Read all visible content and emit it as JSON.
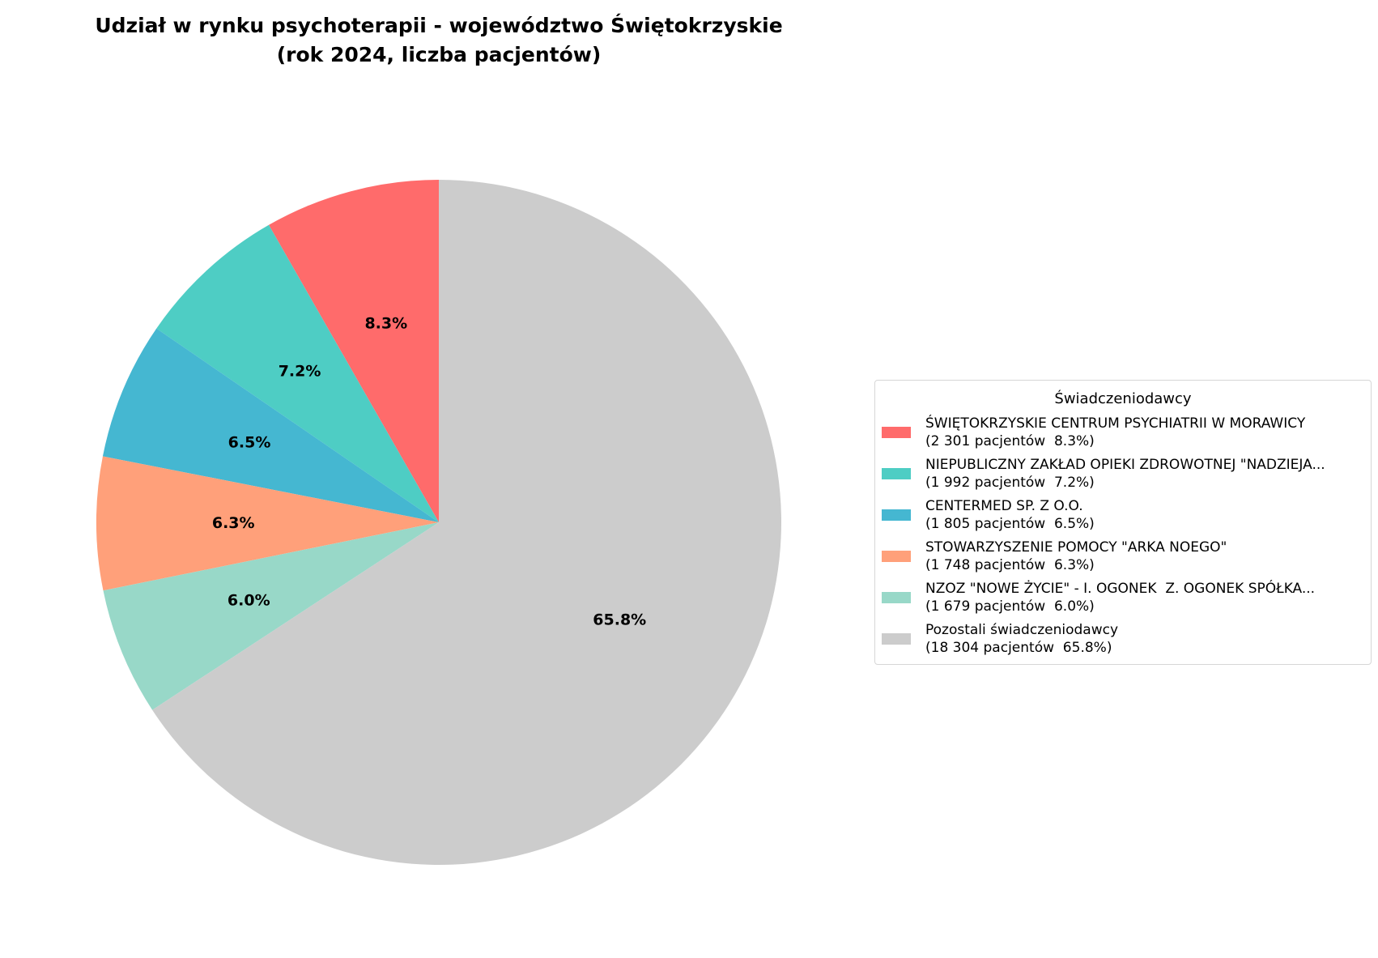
{
  "chart_data": {
    "type": "pie",
    "title": "Udział w rynku psychoterapii - województwo Świętokrzyskie\n(rok 2024, liczba pacjentów)",
    "title_lines": [
      "Udział w rynku psychoterapii - województwo Świętokrzyskie",
      "(rok 2024, liczba pacjentów)"
    ],
    "start_angle": 90,
    "direction": "counterclockwise",
    "legend_title": "Świadczeniodawcy",
    "legend_placement": "right",
    "slices": [
      {
        "label": "ŚWIĘTOKRZYSKIE CENTRUM PSYCHIATRII W MORAWICY",
        "value": 2301,
        "percent_label": "8.3%",
        "legend_detail": "(2 301 pacjentów  8.3%)",
        "color": "#FF6B6B"
      },
      {
        "label": "NIEPUBLICZNY ZAKŁAD OPIEKI ZDROWOTNEJ \"NADZIEJA...",
        "value": 1992,
        "percent_label": "7.2%",
        "legend_detail": "(1 992 pacjentów  7.2%)",
        "color": "#4ECDC4"
      },
      {
        "label": "CENTERMED SP. Z O.O.",
        "value": 1805,
        "percent_label": "6.5%",
        "legend_detail": "(1 805 pacjentów  6.5%)",
        "color": "#45B7D1"
      },
      {
        "label": "STOWARZYSZENIE POMOCY \"ARKA NOEGO\"",
        "value": 1748,
        "percent_label": "6.3%",
        "legend_detail": "(1 748 pacjentów  6.3%)",
        "color": "#FFA07A"
      },
      {
        "label": "NZOZ \"NOWE ŻYCIE\" - I. OGONEK  Z. OGONEK SPÓŁKA...",
        "value": 1679,
        "percent_label": "6.0%",
        "legend_detail": "(1 679 pacjentów  6.0%)",
        "color": "#98D8C8"
      },
      {
        "label": "Pozostali świadczeniodawcy",
        "value": 18304,
        "percent_label": "65.8%",
        "legend_detail": "(18 304 pacjentów  65.8%)",
        "color": "#CCCCCC"
      }
    ]
  }
}
